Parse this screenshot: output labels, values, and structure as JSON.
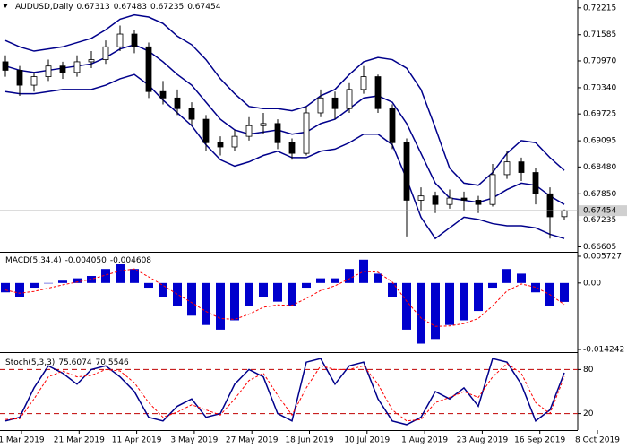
{
  "chart_data": [
    {
      "type": "candlestick",
      "title": "AUDUSD,Daily",
      "up_color": "#ffffff",
      "down_color": "#000000",
      "wick_color": "#000000",
      "candles": [
        [
          0.7095,
          0.711,
          0.706,
          0.7075
        ],
        [
          0.7075,
          0.7085,
          0.7015,
          0.704
        ],
        [
          0.704,
          0.707,
          0.7025,
          0.706
        ],
        [
          0.706,
          0.71,
          0.705,
          0.7085
        ],
        [
          0.7085,
          0.7095,
          0.7055,
          0.707
        ],
        [
          0.707,
          0.711,
          0.706,
          0.7095
        ],
        [
          0.7095,
          0.712,
          0.708,
          0.71
        ],
        [
          0.71,
          0.7145,
          0.709,
          0.713
        ],
        [
          0.713,
          0.718,
          0.712,
          0.716
        ],
        [
          0.716,
          0.717,
          0.7115,
          0.713
        ],
        [
          0.713,
          0.714,
          0.701,
          0.7025
        ],
        [
          0.7025,
          0.705,
          0.6995,
          0.701
        ],
        [
          0.701,
          0.703,
          0.697,
          0.6985
        ],
        [
          0.6985,
          0.7,
          0.6945,
          0.696
        ],
        [
          0.696,
          0.697,
          0.6885,
          0.6905
        ],
        [
          0.6905,
          0.692,
          0.6875,
          0.6895
        ],
        [
          0.6895,
          0.6935,
          0.6885,
          0.692
        ],
        [
          0.692,
          0.6965,
          0.691,
          0.6945
        ],
        [
          0.6945,
          0.6975,
          0.6925,
          0.695
        ],
        [
          0.695,
          0.696,
          0.689,
          0.6905
        ],
        [
          0.6905,
          0.6915,
          0.6865,
          0.688
        ],
        [
          0.688,
          0.699,
          0.6875,
          0.6975
        ],
        [
          0.6975,
          0.703,
          0.6965,
          0.701
        ],
        [
          0.701,
          0.7025,
          0.696,
          0.6985
        ],
        [
          0.6985,
          0.7045,
          0.6975,
          0.703
        ],
        [
          0.703,
          0.7085,
          0.702,
          0.706
        ],
        [
          0.706,
          0.7065,
          0.6975,
          0.6985
        ],
        [
          0.6985,
          0.6995,
          0.689,
          0.6905
        ],
        [
          0.6905,
          0.6915,
          0.6685,
          0.677
        ],
        [
          0.677,
          0.68,
          0.6745,
          0.678
        ],
        [
          0.678,
          0.679,
          0.674,
          0.676
        ],
        [
          0.676,
          0.6795,
          0.675,
          0.6775
        ],
        [
          0.6775,
          0.679,
          0.6745,
          0.677
        ],
        [
          0.677,
          0.678,
          0.674,
          0.676
        ],
        [
          0.676,
          0.6855,
          0.6755,
          0.683
        ],
        [
          0.683,
          0.6885,
          0.682,
          0.686
        ],
        [
          0.686,
          0.687,
          0.6815,
          0.6835
        ],
        [
          0.6835,
          0.6845,
          0.676,
          0.6785
        ],
        [
          0.6785,
          0.68,
          0.668,
          0.6731
        ],
        [
          0.67313,
          0.67483,
          0.67235,
          0.67454
        ]
      ],
      "series": [
        {
          "color": "#00008b",
          "values": [
            0.7145,
            0.713,
            0.712,
            0.7125,
            0.713,
            0.714,
            0.715,
            0.717,
            0.7195,
            0.7205,
            0.72,
            0.7185,
            0.7155,
            0.7135,
            0.71,
            0.7055,
            0.702,
            0.699,
            0.6985,
            0.6985,
            0.698,
            0.699,
            0.7015,
            0.703,
            0.7065,
            0.7095,
            0.7105,
            0.71,
            0.708,
            0.703,
            0.694,
            0.6845,
            0.681,
            0.6805,
            0.6835,
            0.688,
            0.691,
            0.6905,
            0.687,
            0.684
          ]
        },
        {
          "color": "#00008b",
          "values": [
            0.7085,
            0.7075,
            0.707,
            0.7075,
            0.708,
            0.7085,
            0.709,
            0.7105,
            0.7125,
            0.7135,
            0.712,
            0.7095,
            0.7065,
            0.704,
            0.7,
            0.696,
            0.6935,
            0.6925,
            0.693,
            0.6935,
            0.6925,
            0.693,
            0.695,
            0.696,
            0.6985,
            0.701,
            0.7015,
            0.7,
            0.695,
            0.688,
            0.681,
            0.6775,
            0.677,
            0.6765,
            0.6775,
            0.6795,
            0.681,
            0.6805,
            0.678,
            0.676
          ]
        },
        {
          "color": "#00008b",
          "values": [
            0.7025,
            0.702,
            0.702,
            0.7025,
            0.703,
            0.703,
            0.703,
            0.704,
            0.7055,
            0.7065,
            0.704,
            0.7005,
            0.6975,
            0.6945,
            0.69,
            0.6865,
            0.685,
            0.686,
            0.6875,
            0.6885,
            0.687,
            0.687,
            0.6885,
            0.689,
            0.6905,
            0.6925,
            0.6925,
            0.69,
            0.682,
            0.673,
            0.668,
            0.6705,
            0.673,
            0.6725,
            0.6715,
            0.671,
            0.671,
            0.6705,
            0.669,
            0.668
          ]
        }
      ],
      "ylim": [
        0.6651,
        0.724
      ],
      "yticks": [
        0.72215,
        0.71585,
        {
          "value": 0.7097,
          "label": "0.70970"
        },
        {
          "value": 0.7034,
          "label": "0.70340"
        },
        0.69725,
        0.69095,
        {
          "value": 0.6848,
          "label": "0.68480"
        },
        {
          "value": 0.6785,
          "label": "0.67850"
        },
        0.67235,
        0.66605
      ]
    },
    {
      "type": "macd",
      "title": "MACD(5,34,4)",
      "readout": [
        "-0.004050",
        "-0.004608"
      ],
      "color": "#0000cd",
      "signal_color": "#ff0000",
      "values": [
        -0.002,
        -0.003,
        -0.001,
        0,
        0.0005,
        0.001,
        0.0015,
        0.003,
        0.004,
        0.003,
        -0.001,
        -0.003,
        -0.005,
        -0.007,
        -0.009,
        -0.01,
        -0.008,
        -0.005,
        -0.003,
        -0.004,
        -0.005,
        -0.001,
        0.001,
        0.001,
        0.003,
        0.005,
        0.002,
        -0.003,
        -0.01,
        -0.013,
        -0.012,
        -0.009,
        -0.008,
        -0.006,
        -0.001,
        0.003,
        0.002,
        -0.002,
        -0.005,
        -0.00405
      ],
      "signal": [
        -0.0015,
        -0.0022,
        -0.0018,
        -0.0011,
        -0.0004,
        0.0002,
        0.0008,
        0.0017,
        0.0026,
        0.003,
        0.0013,
        -0.0005,
        -0.0024,
        -0.0042,
        -0.0061,
        -0.0076,
        -0.0078,
        -0.0067,
        -0.0052,
        -0.0047,
        -0.0048,
        -0.0033,
        -0.0016,
        -0.0006,
        0.0009,
        0.0025,
        0.0023,
        0.0002,
        -0.0039,
        -0.0075,
        -0.0093,
        -0.0092,
        -0.0087,
        -0.0076,
        -0.0049,
        -0.0017,
        -0.0002,
        -0.0009,
        -0.0025,
        -0.004608
      ],
      "ylim": [
        -0.014242,
        0.005727
      ],
      "yticks": [
        0.005727,
        {
          "value": 0,
          "label": "0.00"
        },
        -0.014242
      ]
    },
    {
      "type": "stochastic",
      "title": "Stoch(5,3,3)",
      "level_color": "#c00000",
      "series": [
        {
          "color": "#00008b",
          "values": [
            10,
            15,
            55,
            85,
            75,
            60,
            80,
            85,
            70,
            50,
            15,
            10,
            30,
            40,
            15,
            20,
            60,
            80,
            70,
            20,
            10,
            90,
            95,
            60,
            85,
            90,
            40,
            10,
            5,
            15,
            50,
            40,
            55,
            30,
            95,
            90,
            60,
            10,
            25,
            75.6074
          ]
        },
        {
          "color": "#ff0000",
          "values": [
            12,
            13,
            40,
            70,
            78,
            70,
            72,
            80,
            78,
            62,
            35,
            15,
            22,
            32,
            25,
            18,
            40,
            65,
            75,
            45,
            18,
            55,
            85,
            80,
            80,
            85,
            60,
            25,
            10,
            12,
            35,
            42,
            50,
            42,
            70,
            88,
            75,
            35,
            20,
            70.5546
          ]
        }
      ],
      "ylim": [
        0,
        100
      ],
      "yticks": [
        80,
        20
      ],
      "time_labels": [
        "1 Mar 2019",
        "21 Mar 2019",
        "11 Apr 2019",
        "3 May 2019",
        "27 May 2019",
        "18 Jun 2019",
        "10 Jul 2019",
        "1 Aug 2019",
        "23 Aug 2019",
        "16 Sep 2019",
        "8 Oct 2019"
      ]
    }
  ]
}
